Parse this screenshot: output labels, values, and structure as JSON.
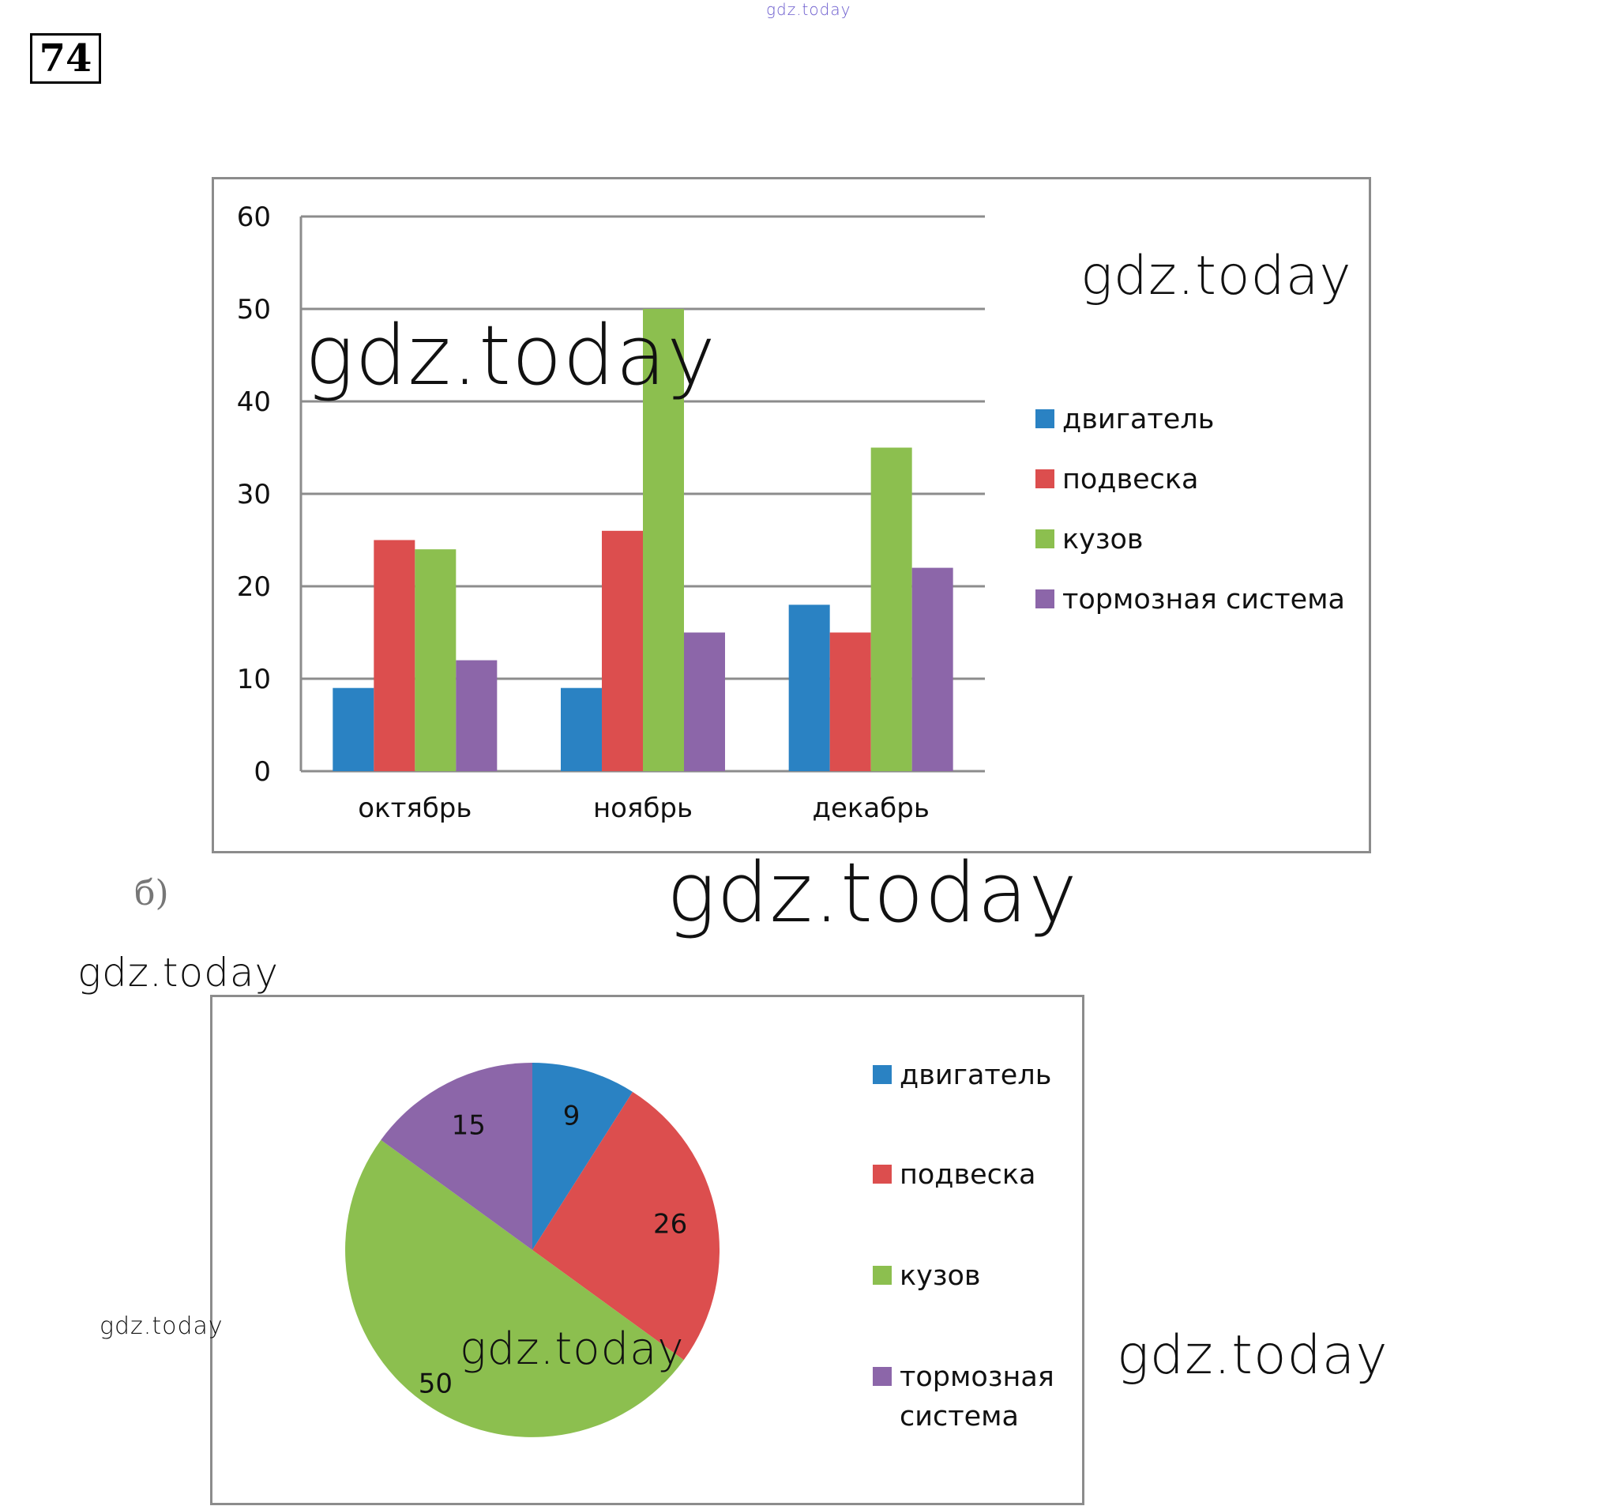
{
  "problem_number": "74",
  "part_label": "б)",
  "watermarks": [
    "gdz.today",
    "gdz.today",
    "gdz.today",
    "gdz.today",
    "gdz.today",
    "gdz.today",
    "gdz.today",
    "gdz.today"
  ],
  "colors": {
    "двигатель": "#2a82c3",
    "подвеска": "#dc4e4e",
    "кузов": "#8cbf4f",
    "тормозная система": "#8c66a9",
    "grid": "#8c8c8c"
  },
  "chart_data": [
    {
      "type": "bar",
      "categories": [
        "октябрь",
        "ноябрь",
        "декабрь"
      ],
      "series": [
        {
          "name": "двигатель",
          "values": [
            9,
            9,
            18
          ]
        },
        {
          "name": "подвеска",
          "values": [
            25,
            26,
            15
          ]
        },
        {
          "name": "кузов",
          "values": [
            24,
            50,
            35
          ]
        },
        {
          "name": "тормозная система",
          "values": [
            12,
            15,
            22
          ]
        }
      ],
      "y_ticks": [
        "0",
        "10",
        "20",
        "30",
        "40",
        "50",
        "60"
      ],
      "ylim": [
        0,
        60
      ],
      "grid": true,
      "legend": "right"
    },
    {
      "type": "pie",
      "labels": [
        "двигатель",
        "подвеска",
        "кузов",
        "тормозная система"
      ],
      "legend_lines": [
        [
          "двигатель"
        ],
        [
          "подвеска"
        ],
        [
          "кузов"
        ],
        [
          "тормозная",
          "система"
        ]
      ],
      "values": [
        9,
        26,
        50,
        15
      ],
      "data_labels": [
        "9",
        "26",
        "50",
        "15"
      ],
      "legend": "right"
    }
  ]
}
